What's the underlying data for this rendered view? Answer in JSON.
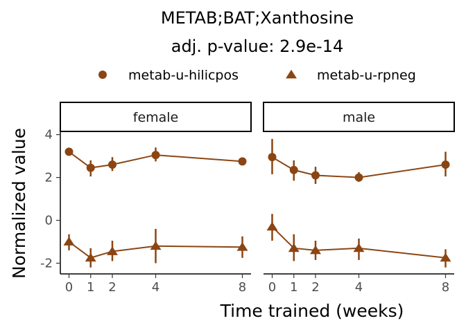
{
  "chart_data": {
    "type": "line",
    "title": "METAB;BAT;Xanthosine",
    "subtitle": "adj. p-value: 2.9e-14",
    "xlabel": "Time trained (weeks)",
    "ylabel": "Normalized value",
    "x_ticks": [
      0,
      1,
      2,
      4,
      8
    ],
    "y_ticks": [
      4,
      2,
      0,
      -2
    ],
    "xlim": [
      -0.4,
      8.4
    ],
    "ylim": [
      -2.5,
      4.15
    ],
    "legend": "top",
    "color": "#8B4513",
    "series_legend": [
      {
        "name": "metab-u-hilicpos",
        "marker": "circle"
      },
      {
        "name": "metab-u-rpneg",
        "marker": "triangle"
      }
    ],
    "panels": [
      {
        "label": "female",
        "series": [
          {
            "name": "metab-u-hilicpos",
            "marker": "circle",
            "x": [
              0,
              1,
              2,
              4,
              8
            ],
            "y": [
              3.2,
              2.45,
              2.6,
              3.05,
              2.75
            ],
            "err_lo": [
              3.2,
              2.05,
              2.3,
              2.75,
              2.75
            ],
            "err_hi": [
              3.2,
              2.8,
              2.95,
              3.4,
              2.75
            ]
          },
          {
            "name": "metab-u-rpneg",
            "marker": "triangle",
            "x": [
              0,
              1,
              2,
              4,
              8
            ],
            "y": [
              -1.0,
              -1.75,
              -1.45,
              -1.2,
              -1.25
            ],
            "err_lo": [
              -1.4,
              -2.2,
              -1.9,
              -2.0,
              -1.75
            ],
            "err_hi": [
              -0.65,
              -1.3,
              -0.95,
              -0.4,
              -0.75
            ]
          }
        ]
      },
      {
        "label": "male",
        "series": [
          {
            "name": "metab-u-hilicpos",
            "marker": "circle",
            "x": [
              0,
              1,
              2,
              4,
              8
            ],
            "y": [
              2.95,
              2.35,
              2.1,
              2.0,
              2.6
            ],
            "err_lo": [
              2.15,
              1.85,
              1.7,
              1.8,
              2.05
            ],
            "err_hi": [
              3.8,
              2.8,
              2.5,
              2.25,
              3.2
            ]
          },
          {
            "name": "metab-u-rpneg",
            "marker": "triangle",
            "x": [
              0,
              1,
              2,
              4,
              8
            ],
            "y": [
              -0.3,
              -1.3,
              -1.4,
              -1.3,
              -1.75
            ],
            "err_lo": [
              -0.95,
              -1.9,
              -1.85,
              -1.85,
              -2.2
            ],
            "err_hi": [
              0.3,
              -0.65,
              -0.95,
              -0.85,
              -1.35
            ]
          }
        ]
      }
    ]
  }
}
